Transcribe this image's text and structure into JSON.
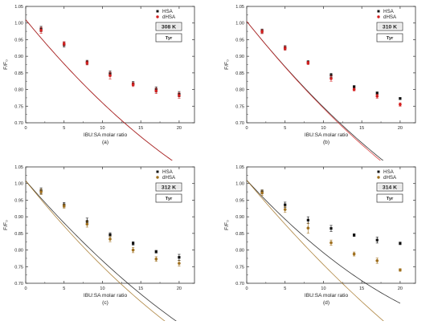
{
  "chart_data": [
    {
      "type": "scatter",
      "panel": "(a)",
      "temperature": "308 K",
      "residue": "Tyr",
      "xlabel": "IBU:SA molar ratio",
      "ylabel": "F/F₀",
      "xlim": [
        0,
        22
      ],
      "ylim": [
        0.7,
        1.05
      ],
      "xticks": [
        "0",
        "5",
        "10",
        "15",
        "20"
      ],
      "yticks": [
        "0.70",
        "0.75",
        "0.80",
        "0.85",
        "0.90",
        "0.95",
        "1.00",
        "1.05"
      ],
      "legend": "top-right",
      "grid": false,
      "series": [
        {
          "name": "HSA",
          "color": "#111111",
          "fit_color": "#111111",
          "x": [
            2,
            5,
            8,
            11,
            14,
            17,
            20
          ],
          "y": [
            0.982,
            0.935,
            0.882,
            0.848,
            0.818,
            0.8,
            0.786
          ],
          "err": [
            0.008,
            0.007,
            0.006,
            0.008,
            0.006,
            0.008,
            0.008
          ],
          "fit": [
            1.01,
            0.0281,
            0.00031
          ]
        },
        {
          "name": "dHSA",
          "color": "#d42020",
          "fit_color": "#d42020",
          "x": [
            2,
            5,
            8,
            11,
            14,
            17,
            20
          ],
          "y": [
            0.978,
            0.938,
            0.88,
            0.842,
            0.815,
            0.796,
            0.782
          ],
          "err": [
            0.009,
            0.006,
            0.006,
            0.01,
            0.006,
            0.008,
            0.008
          ],
          "fit": [
            1.01,
            0.0281,
            0.00031
          ]
        }
      ]
    },
    {
      "type": "scatter",
      "panel": "(b)",
      "temperature": "310 K",
      "residue": "Tyr",
      "xlabel": "IBU:SA molar ratio",
      "ylabel": "F/F₀",
      "xlim": [
        0,
        22
      ],
      "ylim": [
        0.7,
        1.05
      ],
      "xticks": [
        "0",
        "5",
        "10",
        "15",
        "20"
      ],
      "yticks": [
        "0.70",
        "0.75",
        "0.80",
        "0.85",
        "0.90",
        "0.95",
        "1.00",
        "1.05"
      ],
      "legend": "top-right",
      "grid": false,
      "series": [
        {
          "name": "HSA",
          "color": "#111111",
          "fit_color": "#111111",
          "x": [
            2,
            5,
            8,
            11,
            14,
            17,
            20
          ],
          "y": [
            0.976,
            0.926,
            0.882,
            0.843,
            0.808,
            0.789,
            0.773
          ],
          "err": [
            0.006,
            0.006,
            0.005,
            0.006,
            0.004,
            0.004,
            0.003
          ],
          "fit": [
            1.005,
            0.0287,
            0.00029
          ]
        },
        {
          "name": "dHSA",
          "color": "#d42020",
          "fit_color": "#d42020",
          "x": [
            2,
            5,
            8,
            11,
            14,
            17,
            20
          ],
          "y": [
            0.974,
            0.924,
            0.88,
            0.833,
            0.8,
            0.78,
            0.755
          ],
          "err": [
            0.006,
            0.006,
            0.005,
            0.008,
            0.004,
            0.006,
            0.005
          ],
          "fit": [
            1.005,
            0.0289,
            0.00028
          ]
        }
      ]
    },
    {
      "type": "scatter",
      "panel": "(c)",
      "temperature": "312 K",
      "residue": "Tyr",
      "xlabel": "IBU:SA molar ratio",
      "ylabel": "F/F₀",
      "xlim": [
        0,
        22
      ],
      "ylim": [
        0.7,
        1.05
      ],
      "xticks": [
        "0",
        "5",
        "10",
        "15",
        "20"
      ],
      "yticks": [
        "0.70",
        "0.75",
        "0.80",
        "0.85",
        "0.90",
        "0.95",
        "1.00",
        "1.05"
      ],
      "legend": "top-right",
      "grid": false,
      "series": [
        {
          "name": "HSA",
          "color": "#111111",
          "fit_color": "#111111",
          "x": [
            2,
            5,
            8,
            11,
            14,
            17,
            20
          ],
          "y": [
            0.978,
            0.936,
            0.886,
            0.846,
            0.82,
            0.795,
            0.778
          ],
          "err": [
            0.009,
            0.007,
            0.01,
            0.006,
            0.005,
            0.004,
            0.009
          ],
          "fit": [
            1.008,
            0.0266,
            0.00026
          ]
        },
        {
          "name": "dHSA",
          "color": "#a0701e",
          "fit_color": "#a0701e",
          "x": [
            2,
            5,
            8,
            11,
            14,
            17,
            20
          ],
          "y": [
            0.975,
            0.932,
            0.878,
            0.833,
            0.8,
            0.773,
            0.76
          ],
          "err": [
            0.008,
            0.006,
            0.009,
            0.008,
            0.008,
            0.007,
            0.008
          ],
          "fit": [
            1.008,
            0.0287,
            0.0003
          ]
        }
      ]
    },
    {
      "type": "scatter",
      "panel": "(d)",
      "temperature": "314 K",
      "residue": "Tyr",
      "xlabel": "IBU:SA molar ratio",
      "ylabel": "F/F₀",
      "xlim": [
        0,
        22
      ],
      "ylim": [
        0.7,
        1.05
      ],
      "xticks": [
        "0",
        "5",
        "10",
        "15",
        "20"
      ],
      "yticks": [
        "0.70",
        "0.75",
        "0.80",
        "0.85",
        "0.90",
        "0.95",
        "1.00",
        "1.05"
      ],
      "legend": "top-right",
      "grid": false,
      "series": [
        {
          "name": "HSA",
          "color": "#111111",
          "fit_color": "#111111",
          "x": [
            2,
            5,
            8,
            11,
            14,
            17,
            20
          ],
          "y": [
            0.975,
            0.936,
            0.89,
            0.865,
            0.845,
            0.83,
            0.82
          ],
          "err": [
            0.006,
            0.008,
            0.01,
            0.009,
            0.004,
            0.009,
            0.004
          ],
          "fit": [
            1.01,
            0.0251,
            0.00033
          ]
        },
        {
          "name": "dHSA",
          "color": "#a0701e",
          "fit_color": "#a0701e",
          "x": [
            2,
            5,
            8,
            11,
            14,
            17,
            20
          ],
          "y": [
            0.972,
            0.922,
            0.866,
            0.822,
            0.788,
            0.768,
            0.74
          ],
          "err": [
            0.008,
            0.008,
            0.015,
            0.008,
            0.006,
            0.008,
            0.004
          ],
          "fit": [
            1.01,
            0.0275,
            0.00021
          ]
        }
      ]
    }
  ]
}
